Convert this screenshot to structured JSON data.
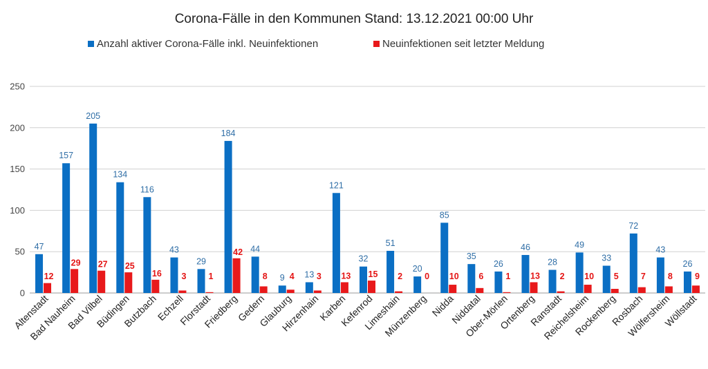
{
  "colors": {
    "active": "#0b6fc4",
    "new": "#e8191b",
    "gridline": "#d0d0d0",
    "axis": "#9a9a9a"
  },
  "chart_data": {
    "type": "bar",
    "title": "Corona-Fälle in den Kommunen Stand: 13.12.2021 00:00 Uhr",
    "legend_position": "top",
    "grid": true,
    "ylim": [
      0,
      250
    ],
    "yticks": [
      0,
      50,
      100,
      150,
      200,
      250
    ],
    "categories": [
      "Altenstadt",
      "Bad Nauheim",
      "Bad Vilbel",
      "Büdingen",
      "Butzbach",
      "Echzell",
      "Florstadt",
      "Friedberg",
      "Gedern",
      "Glauburg",
      "Hirzenhain",
      "Karben",
      "Kefenrod",
      "Limeshain",
      "Münzenberg",
      "Nidda",
      "Niddatal",
      "Ober-Mörlen",
      "Ortenberg",
      "Ranstadt",
      "Reichelsheim",
      "Rockenberg",
      "Rosbach",
      "Wölfersheim",
      "Wöllstadt"
    ],
    "series": [
      {
        "name": "Anzahl aktiver Corona-Fälle inkl. Neuinfektionen",
        "values": [
          47,
          157,
          205,
          134,
          116,
          43,
          29,
          184,
          44,
          9,
          13,
          121,
          32,
          51,
          20,
          85,
          35,
          26,
          46,
          28,
          49,
          33,
          72,
          43,
          26
        ]
      },
      {
        "name": "Neuinfektionen seit letzter Meldung",
        "values": [
          12,
          29,
          27,
          25,
          16,
          3,
          1,
          42,
          8,
          4,
          3,
          13,
          15,
          2,
          0,
          10,
          6,
          1,
          13,
          2,
          10,
          5,
          7,
          8,
          9
        ]
      }
    ]
  }
}
